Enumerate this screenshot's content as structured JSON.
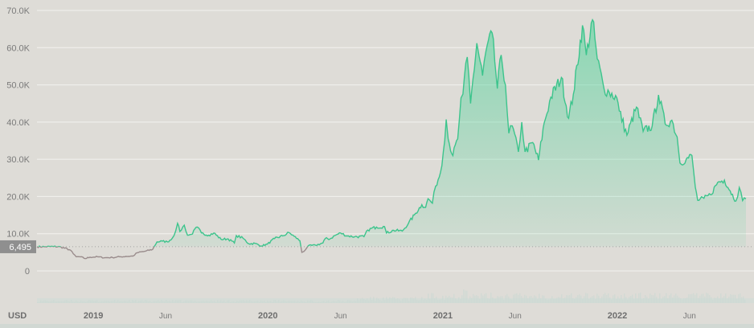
{
  "chart_data": {
    "type": "area",
    "currency": "USD",
    "reference_value_label": "6,495",
    "reference_value": 6495,
    "y_ticks": [
      {
        "value": 0,
        "label": "0"
      },
      {
        "value": 10000,
        "label": "10.0K"
      },
      {
        "value": 20000,
        "label": "20.0K"
      },
      {
        "value": 30000,
        "label": "30.0K"
      },
      {
        "value": 40000,
        "label": "40.0K"
      },
      {
        "value": 50000,
        "label": "50.0K"
      },
      {
        "value": 60000,
        "label": "60.0K"
      },
      {
        "value": 70000,
        "label": "70.0K"
      }
    ],
    "x_ticks": [
      {
        "date": "2019-01-01",
        "label": "2019",
        "major": true
      },
      {
        "date": "2019-06-01",
        "label": "Jun",
        "major": false
      },
      {
        "date": "2020-01-01",
        "label": "2020",
        "major": true
      },
      {
        "date": "2020-06-01",
        "label": "Jun",
        "major": false
      },
      {
        "date": "2021-01-01",
        "label": "2021",
        "major": true
      },
      {
        "date": "2021-06-01",
        "label": "Jun",
        "major": false
      },
      {
        "date": "2022-01-01",
        "label": "2022",
        "major": true
      },
      {
        "date": "2022-06-01",
        "label": "Jun",
        "major": false
      }
    ],
    "ylim": [
      0,
      70000
    ],
    "grid": true,
    "colors": {
      "above": "#3cc48c",
      "below": "#9a8c8c",
      "fill": "#52d39b",
      "reference": "#a3a3a3",
      "label_bg": "#8f8f8f"
    },
    "series": [
      {
        "points": [
          [
            "2018-09-05",
            6500
          ],
          [
            "2018-09-20",
            6500
          ],
          [
            "2018-10-10",
            6550
          ],
          [
            "2018-10-25",
            6450
          ],
          [
            "2018-11-14",
            5600
          ],
          [
            "2018-11-20",
            4600
          ],
          [
            "2018-11-26",
            3800
          ],
          [
            "2018-12-05",
            3800
          ],
          [
            "2018-12-15",
            3300
          ],
          [
            "2018-12-25",
            3700
          ],
          [
            "2019-01-10",
            3800
          ],
          [
            "2019-01-25",
            3550
          ],
          [
            "2019-02-10",
            3600
          ],
          [
            "2019-02-25",
            3800
          ],
          [
            "2019-03-10",
            3900
          ],
          [
            "2019-03-25",
            4000
          ],
          [
            "2019-04-03",
            4900
          ],
          [
            "2019-04-20",
            5300
          ],
          [
            "2019-05-05",
            5800
          ],
          [
            "2019-05-14",
            7800
          ],
          [
            "2019-05-25",
            8000
          ],
          [
            "2019-06-05",
            7800
          ],
          [
            "2019-06-15",
            8800
          ],
          [
            "2019-06-22",
            10700
          ],
          [
            "2019-06-26",
            12800
          ],
          [
            "2019-07-01",
            10600
          ],
          [
            "2019-07-10",
            12300
          ],
          [
            "2019-07-17",
            9600
          ],
          [
            "2019-07-25",
            9800
          ],
          [
            "2019-08-06",
            11800
          ],
          [
            "2019-08-15",
            10200
          ],
          [
            "2019-08-30",
            9600
          ],
          [
            "2019-09-10",
            10200
          ],
          [
            "2019-09-25",
            8500
          ],
          [
            "2019-10-10",
            8600
          ],
          [
            "2019-10-23",
            7500
          ],
          [
            "2019-10-27",
            9500
          ],
          [
            "2019-11-10",
            8800
          ],
          [
            "2019-11-22",
            7300
          ],
          [
            "2019-12-05",
            7400
          ],
          [
            "2019-12-18",
            6700
          ],
          [
            "2019-12-31",
            7200
          ],
          [
            "2020-01-15",
            8700
          ],
          [
            "2020-02-01",
            9400
          ],
          [
            "2020-02-14",
            10300
          ],
          [
            "2020-02-25",
            9300
          ],
          [
            "2020-03-08",
            8100
          ],
          [
            "2020-03-12",
            5000
          ],
          [
            "2020-03-16",
            5200
          ],
          [
            "2020-03-25",
            6700
          ],
          [
            "2020-04-10",
            6900
          ],
          [
            "2020-04-25",
            7500
          ],
          [
            "2020-04-30",
            8700
          ],
          [
            "2020-05-10",
            8600
          ],
          [
            "2020-05-20",
            9500
          ],
          [
            "2020-06-01",
            10200
          ],
          [
            "2020-06-15",
            9400
          ],
          [
            "2020-07-01",
            9200
          ],
          [
            "2020-07-20",
            9200
          ],
          [
            "2020-07-28",
            11000
          ],
          [
            "2020-08-15",
            11800
          ],
          [
            "2020-09-01",
            11900
          ],
          [
            "2020-09-05",
            10200
          ],
          [
            "2020-09-20",
            10900
          ],
          [
            "2020-10-08",
            10700
          ],
          [
            "2020-10-21",
            12800
          ],
          [
            "2020-11-05",
            15500
          ],
          [
            "2020-11-18",
            17800
          ],
          [
            "2020-11-26",
            17100
          ],
          [
            "2020-12-01",
            19400
          ],
          [
            "2020-12-10",
            18200
          ],
          [
            "2020-12-17",
            22800
          ],
          [
            "2020-12-27",
            26500
          ],
          [
            "2021-01-02",
            32000
          ],
          [
            "2021-01-08",
            40700
          ],
          [
            "2021-01-12",
            35500
          ],
          [
            "2021-01-22",
            31000
          ],
          [
            "2021-02-01",
            35500
          ],
          [
            "2021-02-08",
            46500
          ],
          [
            "2021-02-12",
            47500
          ],
          [
            "2021-02-21",
            57500
          ],
          [
            "2021-02-28",
            45000
          ],
          [
            "2021-03-13",
            61200
          ],
          [
            "2021-03-25",
            52500
          ],
          [
            "2021-04-01",
            59000
          ],
          [
            "2021-04-14",
            64000
          ],
          [
            "2021-04-25",
            49000
          ],
          [
            "2021-05-03",
            58000
          ],
          [
            "2021-05-12",
            50000
          ],
          [
            "2021-05-19",
            37000
          ],
          [
            "2021-05-26",
            39000
          ],
          [
            "2021-06-08",
            32000
          ],
          [
            "2021-06-15",
            40000
          ],
          [
            "2021-06-22",
            32000
          ],
          [
            "2021-07-08",
            34500
          ],
          [
            "2021-07-20",
            29800
          ],
          [
            "2021-08-01",
            39800
          ],
          [
            "2021-08-15",
            46700
          ],
          [
            "2021-09-06",
            52000
          ],
          [
            "2021-09-21",
            41000
          ],
          [
            "2021-10-01",
            47500
          ],
          [
            "2021-10-20",
            66000
          ],
          [
            "2021-10-28",
            58000
          ],
          [
            "2021-11-10",
            67500
          ],
          [
            "2021-11-20",
            57000
          ],
          [
            "2021-12-04",
            49000
          ],
          [
            "2021-12-15",
            48000
          ],
          [
            "2021-12-31",
            46500
          ],
          [
            "2022-01-05",
            43000
          ],
          [
            "2022-01-21",
            36500
          ],
          [
            "2022-02-10",
            44000
          ],
          [
            "2022-02-24",
            37500
          ],
          [
            "2022-03-15",
            39000
          ],
          [
            "2022-03-28",
            47300
          ],
          [
            "2022-04-11",
            39500
          ],
          [
            "2022-04-25",
            40500
          ],
          [
            "2022-05-06",
            36000
          ],
          [
            "2022-05-12",
            29000
          ],
          [
            "2022-05-25",
            30000
          ],
          [
            "2022-06-06",
            31000
          ],
          [
            "2022-06-13",
            22500
          ],
          [
            "2022-06-18",
            19000
          ],
          [
            "2022-07-01",
            19500
          ],
          [
            "2022-07-15",
            20500
          ],
          [
            "2022-07-30",
            23800
          ],
          [
            "2022-08-13",
            24400
          ],
          [
            "2022-08-25",
            21500
          ],
          [
            "2022-09-06",
            18800
          ],
          [
            "2022-09-13",
            22400
          ],
          [
            "2022-09-20",
            18900
          ],
          [
            "2022-09-27",
            19400
          ]
        ]
      }
    ]
  }
}
